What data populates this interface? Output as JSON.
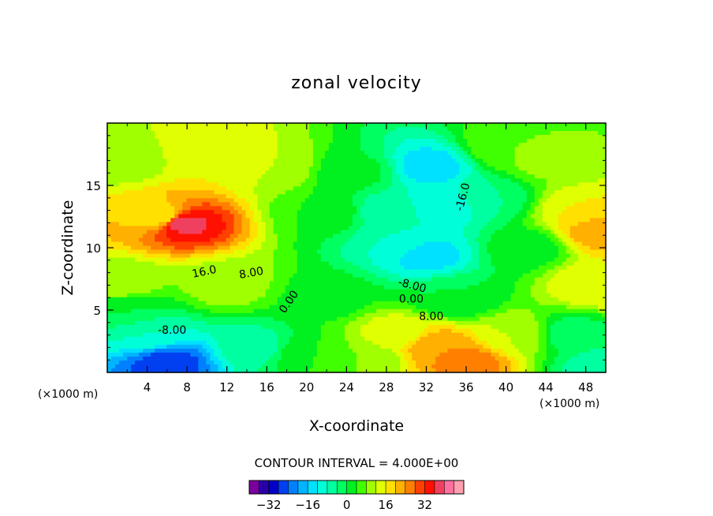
{
  "chart_data": {
    "type": "heatmap",
    "title": "zonal velocity",
    "xlabel": "X-coordinate",
    "ylabel": "Z-coordinate",
    "x_units_left": "(×1000 m)",
    "x_units_right": "(×1000 m)",
    "xlim": [
      0,
      50
    ],
    "ylim": [
      0,
      20
    ],
    "x_ticks": [
      "4",
      "8",
      "12",
      "16",
      "20",
      "24",
      "28",
      "32",
      "36",
      "40",
      "44",
      "48"
    ],
    "y_ticks": [
      "5",
      "10",
      "15"
    ],
    "contour_interval_text": "CONTOUR INTERVAL = 4.000E+00",
    "contour_labels": [
      "16.0",
      "8.00",
      "0.00",
      "-8.00",
      "-8.00",
      "0.00",
      "8.00",
      "-16.0"
    ],
    "colorbar": {
      "ticks": [
        "-32",
        "-16",
        "0",
        "16",
        "32"
      ],
      "levels": [
        -36,
        -32,
        -28,
        -24,
        -20,
        -16,
        -12,
        -8,
        -4,
        0,
        4,
        8,
        12,
        16,
        20,
        24,
        28,
        32,
        36
      ],
      "colors": [
        "#7b00a0",
        "#2800a8",
        "#0000c8",
        "#0040f0",
        "#0080ff",
        "#00b4ff",
        "#00e0ff",
        "#00ffd8",
        "#00ffa0",
        "#00ff60",
        "#00f020",
        "#40ff00",
        "#a0ff00",
        "#e0ff00",
        "#ffe000",
        "#ffb000",
        "#ff8000",
        "#ff4000",
        "#ff1000",
        "#f04060",
        "#ff70a0",
        "#ffa0b0"
      ]
    },
    "field_sources": [
      {
        "x": 7.5,
        "z": 12.0,
        "value": 34
      },
      {
        "x": 5.5,
        "z": 12.5,
        "value": 12
      },
      {
        "x": 11.0,
        "z": 17.5,
        "value": 12
      },
      {
        "x": 16.5,
        "z": 16.5,
        "value": 8
      },
      {
        "x": 12.0,
        "z": 7.0,
        "value": 6
      },
      {
        "x": 6.0,
        "z": 0.8,
        "value": -30
      },
      {
        "x": 4.0,
        "z": 3.0,
        "value": -12
      },
      {
        "x": 15.0,
        "z": 2.0,
        "value": -10
      },
      {
        "x": 20.0,
        "z": 1.5,
        "value": 0
      },
      {
        "x": 22.0,
        "z": 13.0,
        "value": 0
      },
      {
        "x": 22.0,
        "z": 6.0,
        "value": -2
      },
      {
        "x": 25.0,
        "z": 16.0,
        "value": -3
      },
      {
        "x": 28.0,
        "z": 13.0,
        "value": -10
      },
      {
        "x": 32.5,
        "z": 16.5,
        "value": -18
      },
      {
        "x": 34.0,
        "z": 13.5,
        "value": -16
      },
      {
        "x": 32.0,
        "z": 9.5,
        "value": -18
      },
      {
        "x": 29.5,
        "z": 10.5,
        "value": -12
      },
      {
        "x": 38.0,
        "z": 14.0,
        "value": -8
      },
      {
        "x": 35.0,
        "z": 6.0,
        "value": -4
      },
      {
        "x": 33.0,
        "z": 2.0,
        "value": 20
      },
      {
        "x": 36.0,
        "z": 0.8,
        "value": 22
      },
      {
        "x": 29.0,
        "z": 3.0,
        "value": 10
      },
      {
        "x": 26.0,
        "z": 1.0,
        "value": 4
      },
      {
        "x": 41.0,
        "z": 3.0,
        "value": 8
      },
      {
        "x": 42.0,
        "z": 10.0,
        "value": -2
      },
      {
        "x": 40.0,
        "z": 18.0,
        "value": 4
      },
      {
        "x": 44.0,
        "z": 17.0,
        "value": 5
      },
      {
        "x": 47.5,
        "z": 13.0,
        "value": 12
      },
      {
        "x": 49.5,
        "z": 11.5,
        "value": 20
      },
      {
        "x": 49.0,
        "z": 7.0,
        "value": 12
      },
      {
        "x": 46.5,
        "z": 3.0,
        "value": -6
      },
      {
        "x": 49.5,
        "z": 0.5,
        "value": -10
      },
      {
        "x": 1.5,
        "z": 17.0,
        "value": 6
      },
      {
        "x": 1.5,
        "z": 7.0,
        "value": 6
      },
      {
        "x": 2.0,
        "z": 5.0,
        "value": -4
      }
    ]
  }
}
